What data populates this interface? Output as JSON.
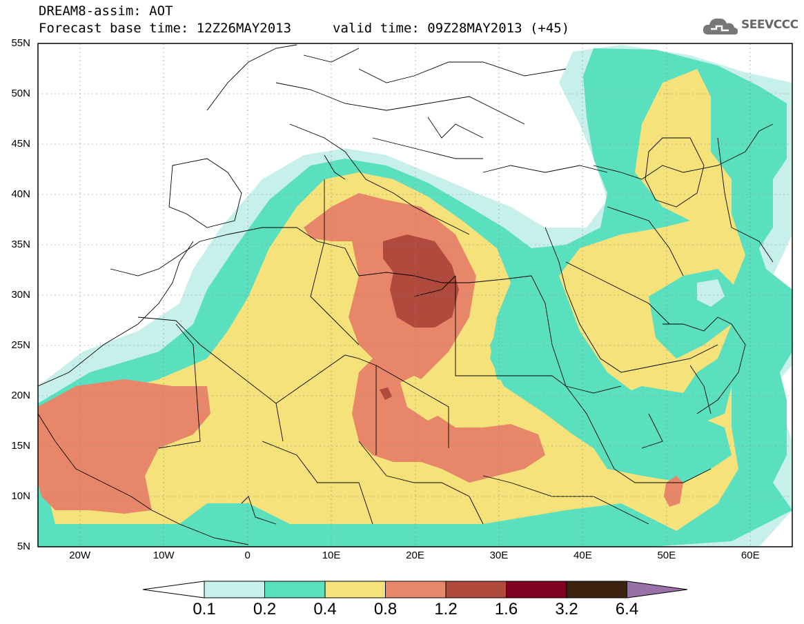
{
  "header": {
    "title": "DREAM8-assim: AOT",
    "base_time": "Forecast base time: 12Z26MAY2013",
    "valid_time": "valid time: 09Z28MAY2013 (+45)"
  },
  "logo": {
    "text": "SEEVCCC",
    "icon": "cloud-icon"
  },
  "map": {
    "lon_range": [
      -25,
      65
    ],
    "lat_range": [
      5,
      55
    ],
    "lon_ticks": [
      "20W",
      "10W",
      "0",
      "10E",
      "20E",
      "30E",
      "40E",
      "50E",
      "60E"
    ],
    "lat_ticks": [
      "55N",
      "50N",
      "45N",
      "40N",
      "35N",
      "30N",
      "25N",
      "20N",
      "15N",
      "10N",
      "5N"
    ],
    "variable": "AOT"
  },
  "colorbar": {
    "levels": [
      "0.1",
      "0.2",
      "0.4",
      "0.8",
      "1.2",
      "1.6",
      "3.2",
      "6.4"
    ],
    "colors": [
      "#c8f0ea",
      "#5ae0be",
      "#f5e27a",
      "#e8866a",
      "#b04a3c",
      "#800020",
      "#3c2410",
      "#9a70a8"
    ]
  }
}
